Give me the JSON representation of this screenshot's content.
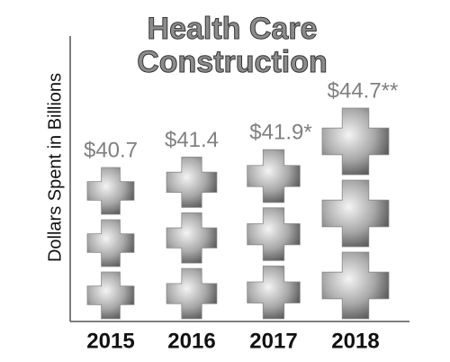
{
  "chart_data": {
    "type": "pictogram",
    "title": [
      "Health Care",
      "Construction"
    ],
    "y_label": "Dollars Spent in Billions",
    "categories": [
      "2015",
      "2016",
      "2017",
      "2018"
    ],
    "values": [
      40.7,
      41.4,
      41.9,
      44.7
    ],
    "value_labels": [
      "$40.7",
      "$41.4",
      "$41.9*",
      "$44.7**"
    ],
    "color": "#8a8a8a"
  }
}
